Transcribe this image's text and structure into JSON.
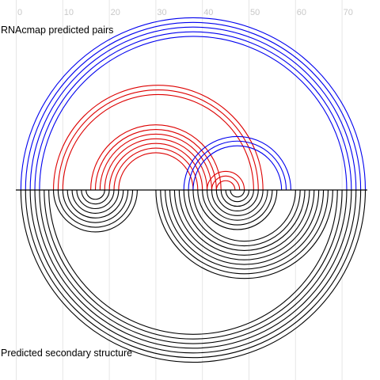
{
  "diagram": {
    "top_label": "RNAcmap predicted pairs",
    "bottom_label": "Predicted secondary structure",
    "ticks": [
      0,
      10,
      20,
      30,
      40,
      50,
      60,
      70
    ],
    "colors": {
      "blue": "#0000ee",
      "red": "#dd0000",
      "black": "#000000",
      "grid": "#e6e6e6",
      "tick_text": "#c8c8c8"
    },
    "top_arcs": [
      {
        "i": 1,
        "j": 75,
        "color": "blue"
      },
      {
        "i": 2,
        "j": 74,
        "color": "blue"
      },
      {
        "i": 3,
        "j": 73,
        "color": "blue"
      },
      {
        "i": 4,
        "j": 72,
        "color": "blue"
      },
      {
        "i": 5,
        "j": 71,
        "color": "blue"
      },
      {
        "i": 8,
        "j": 53,
        "color": "red"
      },
      {
        "i": 9,
        "j": 52,
        "color": "red"
      },
      {
        "i": 10,
        "j": 51,
        "color": "red"
      },
      {
        "i": 16,
        "j": 44,
        "color": "red"
      },
      {
        "i": 17,
        "j": 43,
        "color": "red"
      },
      {
        "i": 18,
        "j": 42,
        "color": "red"
      },
      {
        "i": 19,
        "j": 41,
        "color": "red"
      },
      {
        "i": 20,
        "j": 40,
        "color": "red"
      },
      {
        "i": 21,
        "j": 39,
        "color": "red"
      },
      {
        "i": 22,
        "j": 38,
        "color": "red"
      },
      {
        "i": 36,
        "j": 59,
        "color": "blue"
      },
      {
        "i": 37,
        "j": 58,
        "color": "blue"
      },
      {
        "i": 38,
        "j": 57,
        "color": "blue"
      },
      {
        "i": 41,
        "j": 49,
        "color": "red"
      },
      {
        "i": 42,
        "j": 48,
        "color": "red"
      },
      {
        "i": 43,
        "j": 47,
        "color": "red"
      }
    ],
    "bottom_arcs": [
      {
        "i": 1,
        "j": 75
      },
      {
        "i": 2,
        "j": 74
      },
      {
        "i": 3,
        "j": 73
      },
      {
        "i": 4,
        "j": 72
      },
      {
        "i": 5,
        "j": 71
      },
      {
        "i": 6,
        "j": 70
      },
      {
        "i": 7,
        "j": 69
      },
      {
        "i": 8,
        "j": 26
      },
      {
        "i": 9,
        "j": 25
      },
      {
        "i": 10,
        "j": 24
      },
      {
        "i": 11,
        "j": 23
      },
      {
        "i": 12,
        "j": 22
      },
      {
        "i": 13,
        "j": 21
      },
      {
        "i": 14,
        "j": 20
      },
      {
        "i": 15,
        "j": 19
      },
      {
        "i": 30,
        "j": 68
      },
      {
        "i": 31,
        "j": 67
      },
      {
        "i": 32,
        "j": 66
      },
      {
        "i": 33,
        "j": 65
      },
      {
        "i": 34,
        "j": 64
      },
      {
        "i": 35,
        "j": 63
      },
      {
        "i": 36,
        "j": 62
      },
      {
        "i": 37,
        "j": 61
      },
      {
        "i": 38,
        "j": 60
      },
      {
        "i": 39,
        "j": 56
      },
      {
        "i": 40,
        "j": 55
      },
      {
        "i": 41,
        "j": 54
      },
      {
        "i": 42,
        "j": 53
      },
      {
        "i": 43,
        "j": 52
      },
      {
        "i": 44,
        "j": 51
      },
      {
        "i": 45,
        "j": 50
      },
      {
        "i": 46,
        "j": 49
      }
    ]
  }
}
